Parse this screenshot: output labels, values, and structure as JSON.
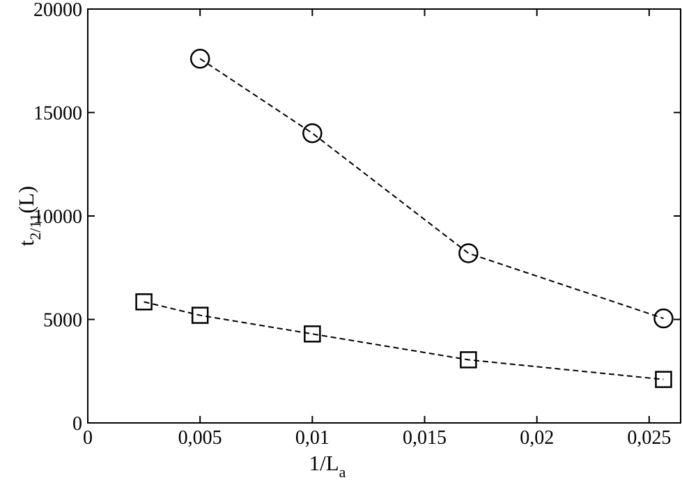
{
  "chart_data": {
    "type": "line",
    "x_label": {
      "base": "1/L",
      "sub": "a"
    },
    "y_label": {
      "base": "t",
      "sub": "2/11",
      "tail": "(L)"
    },
    "series": [
      {
        "marker": "circle",
        "color": "#000000",
        "x": [
          0.005,
          0.01,
          0.01695,
          0.02564
        ],
        "values": [
          17600,
          14000,
          8200,
          5050
        ]
      },
      {
        "marker": "square",
        "color": "#000000",
        "x": [
          0.0025,
          0.005,
          0.01,
          0.01695,
          0.02564
        ],
        "values": [
          5850,
          5200,
          4300,
          3050,
          2100
        ]
      }
    ],
    "line_style": "dashed",
    "xlim": [
      0,
      0.0264
    ],
    "ylim": [
      0,
      20000
    ],
    "xticks": [
      0,
      {
        "value": 0.005,
        "label": "0,005"
      },
      {
        "value": 0.01,
        "label": "0,01"
      },
      {
        "value": 0.015,
        "label": "0,015"
      },
      {
        "value": 0.02,
        "label": "0,02"
      },
      {
        "value": 0.025,
        "label": "0,025"
      }
    ],
    "yticks": [
      0,
      5000,
      10000,
      15000,
      20000
    ]
  }
}
